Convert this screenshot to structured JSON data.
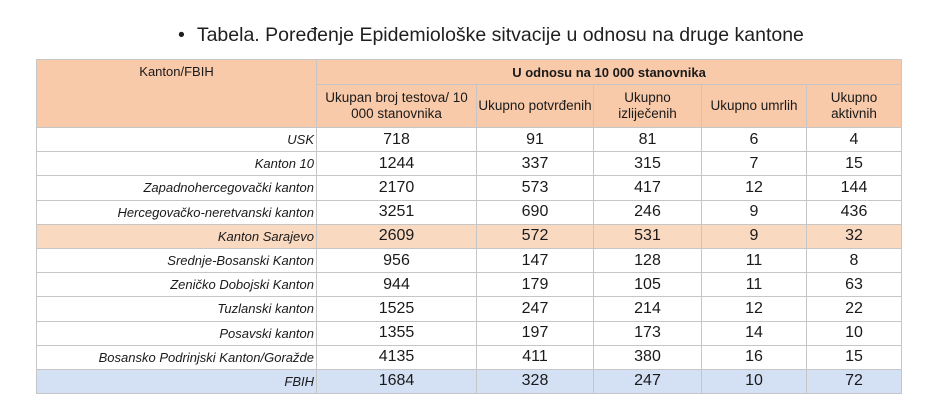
{
  "title": "Tabela. Poređenje Epidemiološke sitvacije u odnosu na druge kantone",
  "bullet": "•",
  "table": {
    "corner_header": "Kanton/FBIH",
    "group_header": "U odnosu na 10 000 stanovnika",
    "columns": [
      "Ukupan broj testova/ 10 000 stanovnika",
      "Ukupno potvrđenih",
      "Ukupno izliječenih",
      "Ukupno umrlih",
      "Ukupno aktivnih"
    ],
    "rows": [
      {
        "name": "USK",
        "values": [
          "718",
          "91",
          "81",
          "6",
          "4"
        ]
      },
      {
        "name": "Kanton 10",
        "values": [
          "1244",
          "337",
          "315",
          "7",
          "15"
        ]
      },
      {
        "name": "Zapadnohercegovački kanton",
        "values": [
          "2170",
          "573",
          "417",
          "12",
          "144"
        ]
      },
      {
        "name": "Hercegovačko-neretvanski kanton",
        "values": [
          "3251",
          "690",
          "246",
          "9",
          "436"
        ]
      },
      {
        "name": "Kanton Sarajevo",
        "values": [
          "2609",
          "572",
          "531",
          "9",
          "32"
        ]
      },
      {
        "name": "Srednje-Bosanski Kanton",
        "values": [
          "956",
          "147",
          "128",
          "11",
          "8"
        ]
      },
      {
        "name": "Zeničko Dobojski Kanton",
        "values": [
          "944",
          "179",
          "105",
          "11",
          "63"
        ]
      },
      {
        "name": "Tuzlanski kanton",
        "values": [
          "1525",
          "247",
          "214",
          "12",
          "22"
        ]
      },
      {
        "name": "Posavski kanton",
        "values": [
          "1355",
          "197",
          "173",
          "14",
          "10"
        ]
      },
      {
        "name": "Bosansko Podrinjski Kanton/Goražde",
        "values": [
          "4135",
          "411",
          "380",
          "16",
          "15"
        ]
      },
      {
        "name": "FBIH",
        "values": [
          "1684",
          "328",
          "247",
          "10",
          "72"
        ]
      }
    ]
  },
  "colors": {
    "header_fill": "#f8caa9",
    "highlight_fill": "#fad9c1",
    "total_fill": "#d4e0f4",
    "grid": "#c6c6c6"
  }
}
